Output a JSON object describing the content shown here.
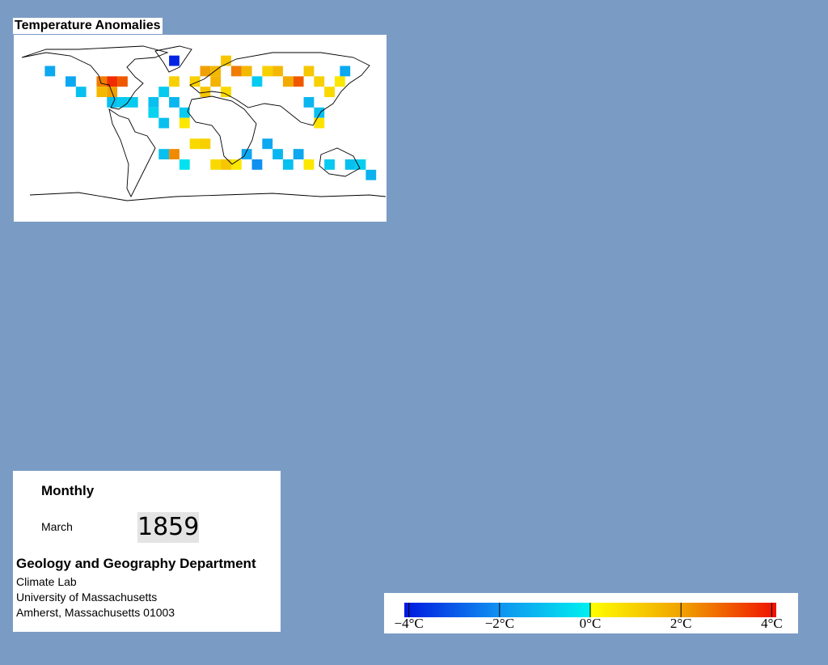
{
  "map": {
    "title": "Temperature Anomalies",
    "cells": [
      {
        "lon": -95,
        "lat": 45,
        "value": 2.5
      },
      {
        "lon": -85,
        "lat": 45,
        "value": 3.6
      },
      {
        "lon": -75,
        "lat": 45,
        "value": 3
      },
      {
        "lon": -85,
        "lat": 35,
        "value": 2
      },
      {
        "lon": -95,
        "lat": 35,
        "value": 1.5
      },
      {
        "lon": -85,
        "lat": 25,
        "value": -1
      },
      {
        "lon": -75,
        "lat": 25,
        "value": -0.8
      },
      {
        "lon": -145,
        "lat": 55,
        "value": -1.5
      },
      {
        "lon": -125,
        "lat": 45,
        "value": -1.5
      },
      {
        "lon": -115,
        "lat": 35,
        "value": -1
      },
      {
        "lon": -65,
        "lat": 25,
        "value": -0.8
      },
      {
        "lon": -45,
        "lat": 25,
        "value": -1
      },
      {
        "lon": -35,
        "lat": 35,
        "value": -0.8
      },
      {
        "lon": -25,
        "lat": 25,
        "value": -1.2
      },
      {
        "lon": -15,
        "lat": 15,
        "value": -0.8
      },
      {
        "lon": -45,
        "lat": 15,
        "value": -0.6
      },
      {
        "lon": -35,
        "lat": 5,
        "value": -1
      },
      {
        "lon": -15,
        "lat": 5,
        "value": 0.5
      },
      {
        "lon": -25,
        "lat": 65,
        "value": -3.8
      },
      {
        "lon": -25,
        "lat": 45,
        "value": 1
      },
      {
        "lon": -5,
        "lat": 45,
        "value": 1
      },
      {
        "lon": 5,
        "lat": 55,
        "value": 2
      },
      {
        "lon": 15,
        "lat": 55,
        "value": 1.5
      },
      {
        "lon": 25,
        "lat": 65,
        "value": 1.2
      },
      {
        "lon": 35,
        "lat": 55,
        "value": 2.5
      },
      {
        "lon": 45,
        "lat": 55,
        "value": 1.5
      },
      {
        "lon": 55,
        "lat": 45,
        "value": -0.8
      },
      {
        "lon": 65,
        "lat": 55,
        "value": 1
      },
      {
        "lon": 75,
        "lat": 55,
        "value": 1.5
      },
      {
        "lon": 85,
        "lat": 45,
        "value": 1.8
      },
      {
        "lon": 95,
        "lat": 45,
        "value": 3
      },
      {
        "lon": 105,
        "lat": 55,
        "value": 1.2
      },
      {
        "lon": 115,
        "lat": 45,
        "value": 1
      },
      {
        "lon": 5,
        "lat": 35,
        "value": 1.2
      },
      {
        "lon": 25,
        "lat": 35,
        "value": 0.8
      },
      {
        "lon": 15,
        "lat": 45,
        "value": 1.6
      },
      {
        "lon": 105,
        "lat": 25,
        "value": -1.2
      },
      {
        "lon": 115,
        "lat": 15,
        "value": -1
      },
      {
        "lon": 125,
        "lat": 35,
        "value": 0.8
      },
      {
        "lon": 135,
        "lat": 45,
        "value": 0.5
      },
      {
        "lon": 140,
        "lat": 55,
        "value": -1.5
      },
      {
        "lon": 115,
        "lat": 5,
        "value": 0.6
      },
      {
        "lon": 45,
        "lat": -25,
        "value": -1.5
      },
      {
        "lon": 55,
        "lat": -35,
        "value": -2
      },
      {
        "lon": 65,
        "lat": -15,
        "value": -1.5
      },
      {
        "lon": 75,
        "lat": -25,
        "value": -1.2
      },
      {
        "lon": 85,
        "lat": -35,
        "value": -1
      },
      {
        "lon": 95,
        "lat": -25,
        "value": -1.5
      },
      {
        "lon": 105,
        "lat": -35,
        "value": 0.5
      },
      {
        "lon": 125,
        "lat": -35,
        "value": -0.8
      },
      {
        "lon": -35,
        "lat": -25,
        "value": -1
      },
      {
        "lon": -25,
        "lat": -25,
        "value": 2.3
      },
      {
        "lon": -15,
        "lat": -35,
        "value": -0.3
      },
      {
        "lon": -5,
        "lat": -15,
        "value": 0.8
      },
      {
        "lon": 5,
        "lat": -15,
        "value": 1
      },
      {
        "lon": 15,
        "lat": -35,
        "value": 0.8
      },
      {
        "lon": 25,
        "lat": -35,
        "value": 1.2
      },
      {
        "lon": 35,
        "lat": -35,
        "value": 0.5
      },
      {
        "lon": 145,
        "lat": -35,
        "value": -1
      },
      {
        "lon": 165,
        "lat": -45,
        "value": -1.3
      },
      {
        "lon": 155,
        "lat": -35,
        "value": -0.7
      }
    ],
    "colorbar": {
      "lim": [
        -4.1,
        4.1
      ],
      "ticks": [
        {
          "value": -4,
          "label": "−4°C"
        },
        {
          "value": -2,
          "label": "−2°C"
        },
        {
          "value": 0,
          "label": "0°C"
        },
        {
          "value": 2,
          "label": "2°C"
        },
        {
          "value": 4,
          "label": "4°C"
        }
      ]
    }
  },
  "info": {
    "period": "Monthly",
    "month": "March",
    "year": "1859",
    "department": "Geology and Geography Department",
    "lines": [
      "Climate Lab",
      "University of Massachusetts",
      "Amherst, Massachusetts 01003"
    ]
  }
}
